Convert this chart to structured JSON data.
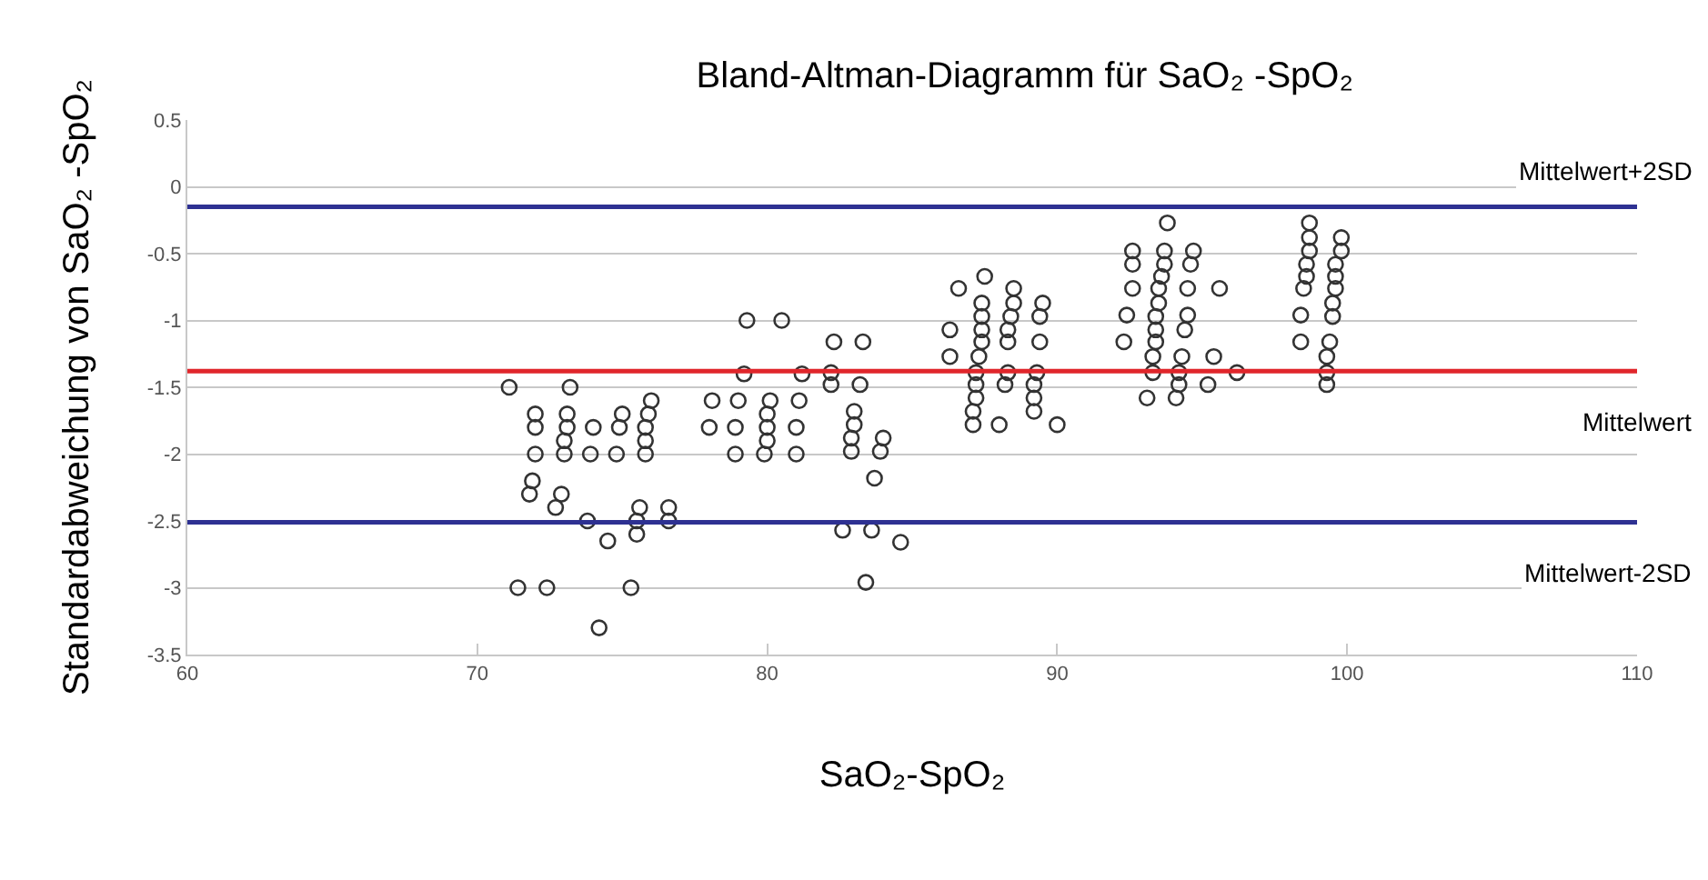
{
  "chart_data": {
    "type": "scatter",
    "title": "Bland-Altman-Diagramm für SaO₂ -SpO₂",
    "xlabel": "SaO₂-SpO₂",
    "ylabel": "Standardabweichung von SaO₂ -SpO₂",
    "xlim": [
      60,
      110
    ],
    "xticks": [
      60,
      70,
      80,
      90,
      100,
      110
    ],
    "ylim": [
      -3.5,
      0.5
    ],
    "yticks": [
      0.5,
      0,
      -0.5,
      -1,
      -1.5,
      -2,
      -2.5,
      -3,
      -3.5
    ],
    "grid": "y",
    "marker": "circle",
    "series": [
      {
        "color": "#333333",
        "x": [
          71.1,
          73.2,
          72.0,
          72.0,
          73.1,
          73.1,
          73.0,
          74.0,
          75.0,
          74.9,
          76.0,
          75.9,
          75.8,
          75.8,
          72.0,
          73.0,
          73.9,
          74.8,
          75.8,
          71.9,
          71.8,
          72.9,
          72.7,
          73.8,
          75.6,
          75.5,
          75.5,
          76.6,
          76.6,
          74.5,
          71.4,
          72.4,
          75.3,
          74.2,
          79.3,
          80.5,
          79.2,
          81.2,
          79.0,
          80.1,
          81.1,
          78.1,
          78.0,
          78.9,
          80.0,
          80.0,
          80.0,
          81.0,
          78.9,
          79.9,
          81.0,
          82.3,
          83.3,
          82.2,
          82.2,
          83.2,
          83.0,
          83.0,
          82.9,
          82.9,
          84.0,
          83.9,
          83.7,
          82.6,
          83.6,
          84.6,
          83.4,
          86.6,
          87.5,
          88.5,
          88.5,
          89.5,
          89.4,
          89.4,
          86.3,
          86.3,
          87.4,
          87.4,
          87.4,
          87.4,
          87.3,
          87.2,
          87.2,
          87.2,
          87.1,
          87.1,
          88.4,
          88.3,
          88.3,
          88.3,
          88.2,
          88.0,
          89.3,
          89.2,
          89.2,
          89.2,
          90.0,
          93.8,
          92.6,
          92.6,
          93.7,
          93.7,
          93.6,
          94.7,
          94.6,
          92.6,
          93.5,
          94.5,
          95.6,
          93.5,
          92.4,
          93.4,
          94.5,
          93.4,
          94.4,
          92.3,
          93.4,
          93.3,
          94.3,
          95.4,
          93.3,
          94.2,
          96.2,
          94.2,
          95.2,
          93.1,
          94.1,
          98.7,
          98.7,
          98.7,
          98.6,
          98.6,
          98.5,
          98.4,
          98.4,
          99.8,
          99.8,
          99.6,
          99.6,
          99.6,
          99.5,
          99.5,
          99.4,
          99.3,
          99.3,
          99.3
        ],
        "values": [
          -1.5,
          -1.5,
          -1.7,
          -1.8,
          -1.7,
          -1.8,
          -1.9,
          -1.8,
          -1.7,
          -1.8,
          -1.6,
          -1.7,
          -1.8,
          -1.9,
          -2.0,
          -2.0,
          -2.0,
          -2.0,
          -2.0,
          -2.2,
          -2.3,
          -2.3,
          -2.4,
          -2.5,
          -2.4,
          -2.5,
          -2.6,
          -2.4,
          -2.5,
          -2.65,
          -3.0,
          -3.0,
          -3.0,
          -3.3,
          -1.0,
          -1.0,
          -1.4,
          -1.4,
          -1.6,
          -1.6,
          -1.6,
          -1.6,
          -1.8,
          -1.8,
          -1.7,
          -1.8,
          -1.9,
          -1.8,
          -2.0,
          -2.0,
          -2.0,
          -1.16,
          -1.16,
          -1.39,
          -1.48,
          -1.48,
          -1.68,
          -1.78,
          -1.88,
          -1.98,
          -1.88,
          -1.98,
          -2.18,
          -2.57,
          -2.57,
          -2.66,
          -2.96,
          -0.76,
          -0.67,
          -0.76,
          -0.87,
          -0.87,
          -0.97,
          -1.16,
          -1.07,
          -1.27,
          -0.87,
          -0.97,
          -1.07,
          -1.16,
          -1.27,
          -1.39,
          -1.48,
          -1.58,
          -1.68,
          -1.78,
          -0.97,
          -1.07,
          -1.16,
          -1.39,
          -1.48,
          -1.78,
          -1.39,
          -1.48,
          -1.58,
          -1.68,
          -1.78,
          -0.27,
          -0.48,
          -0.58,
          -0.48,
          -0.58,
          -0.67,
          -0.48,
          -0.58,
          -0.76,
          -0.76,
          -0.76,
          -0.76,
          -0.87,
          -0.96,
          -0.97,
          -0.96,
          -1.07,
          -1.07,
          -1.16,
          -1.16,
          -1.27,
          -1.27,
          -1.27,
          -1.39,
          -1.39,
          -1.39,
          -1.48,
          -1.48,
          -1.58,
          -1.58,
          -0.27,
          -0.38,
          -0.48,
          -0.58,
          -0.67,
          -0.76,
          -0.96,
          -1.16,
          -0.38,
          -0.48,
          -0.58,
          -0.67,
          -0.76,
          -0.87,
          -0.97,
          -1.16,
          -1.27,
          -1.39,
          -1.48
        ]
      }
    ],
    "ref_lines": [
      {
        "axis": "y",
        "value": -0.15,
        "label": "Mittelwert+2SD",
        "color": "#2e3192"
      },
      {
        "axis": "y",
        "value": -1.38,
        "label": "Mittelwert",
        "color": "#e0262b"
      },
      {
        "axis": "y",
        "value": -2.51,
        "label": "Mittelwert-2SD",
        "color": "#2e3192"
      }
    ]
  }
}
